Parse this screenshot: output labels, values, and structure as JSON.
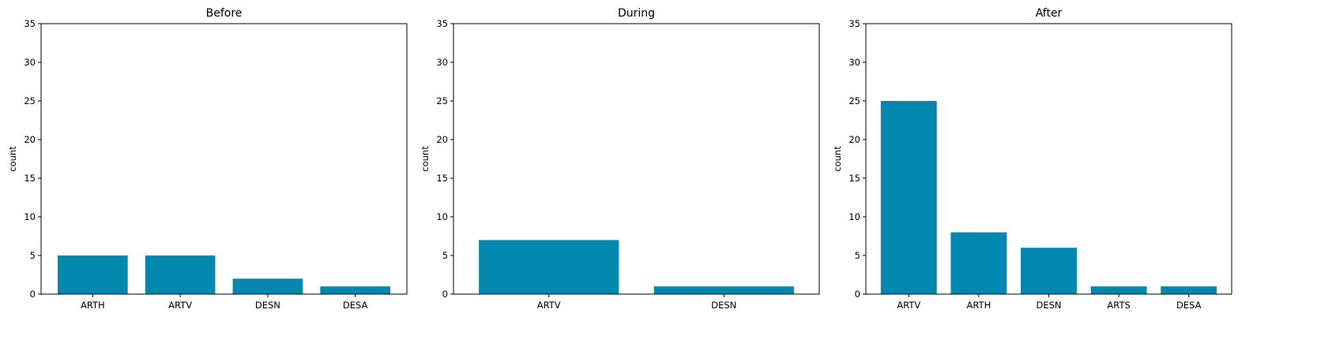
{
  "colors": {
    "bar": "#0288ae",
    "axis": "#000000"
  },
  "chart_data": [
    {
      "type": "bar",
      "title": "Before",
      "ylabel": "count",
      "ylim": [
        0,
        35
      ],
      "yticks": [
        0,
        5,
        10,
        15,
        20,
        25,
        30,
        35
      ],
      "categories": [
        "ARTH",
        "ARTV",
        "DESN",
        "DESA"
      ],
      "values": [
        5,
        5,
        2,
        1
      ]
    },
    {
      "type": "bar",
      "title": "During",
      "ylabel": "count",
      "ylim": [
        0,
        35
      ],
      "yticks": [
        0,
        5,
        10,
        15,
        20,
        25,
        30,
        35
      ],
      "categories": [
        "ARTV",
        "DESN"
      ],
      "values": [
        7,
        1
      ]
    },
    {
      "type": "bar",
      "title": "After",
      "ylabel": "count",
      "ylim": [
        0,
        35
      ],
      "yticks": [
        0,
        5,
        10,
        15,
        20,
        25,
        30,
        35
      ],
      "categories": [
        "ARTV",
        "ARTH",
        "DESN",
        "ARTS",
        "DESA"
      ],
      "values": [
        25,
        8,
        6,
        1,
        1
      ]
    }
  ]
}
